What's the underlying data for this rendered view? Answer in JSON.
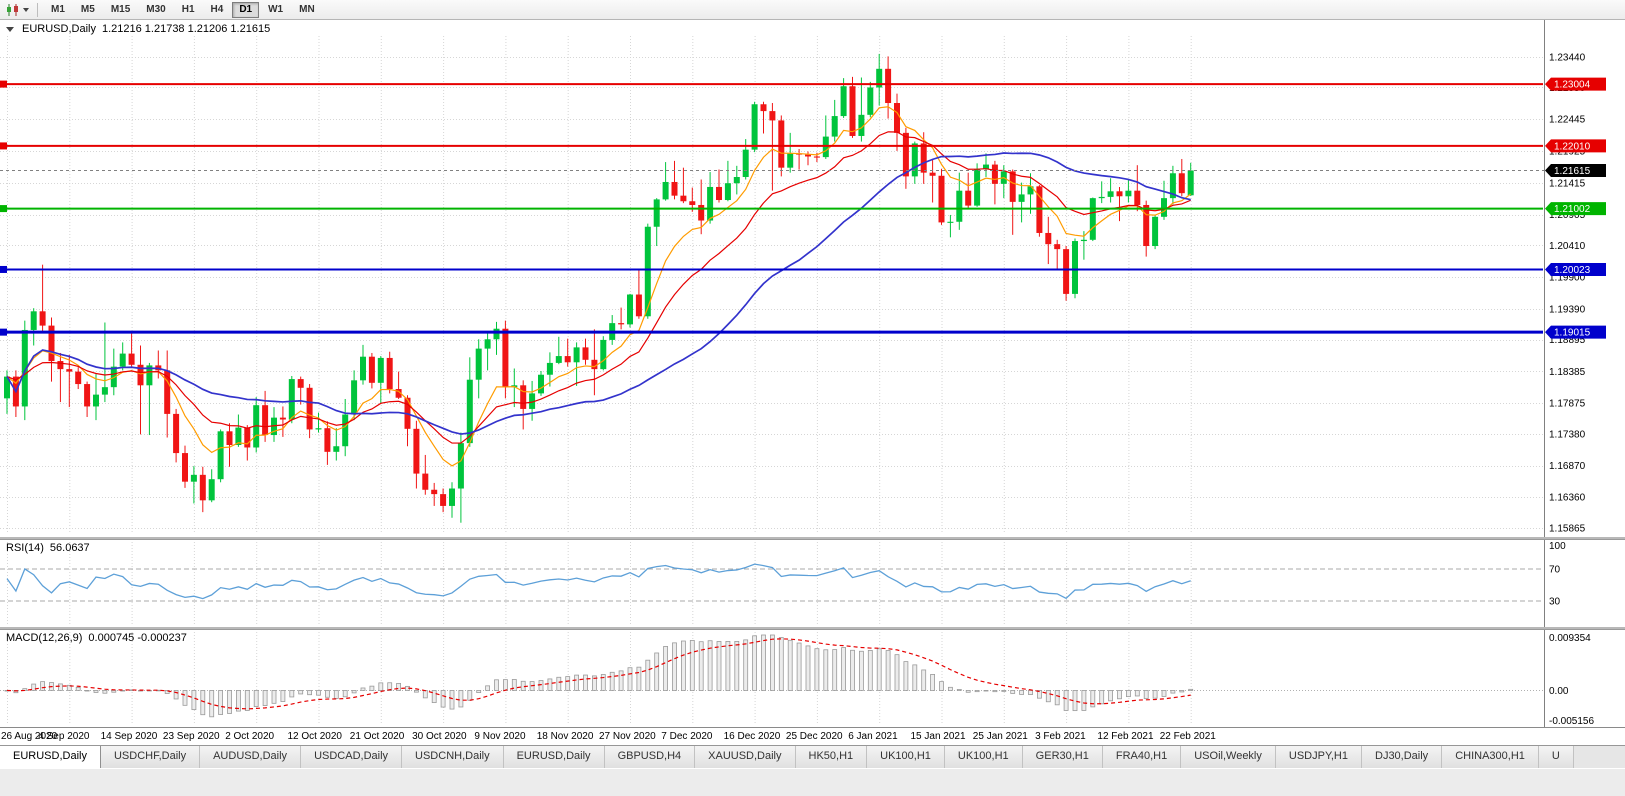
{
  "toolbar": {
    "timeframes": [
      "M1",
      "M5",
      "M15",
      "M30",
      "H1",
      "H4",
      "D1",
      "W1",
      "MN"
    ],
    "active_timeframe": "D1"
  },
  "chart_data": {
    "type": "candlestick",
    "symbol": "EURUSD",
    "timeframe": "Daily",
    "title_symbol": "EURUSD,Daily",
    "title_ohlc": "1.21216 1.21738 1.21206 1.21615",
    "current_price": {
      "value": 1.21615,
      "label": "1.21615",
      "badge_color": "#000000"
    },
    "bull_color": "#00c43c",
    "bear_color": "#f01515",
    "grid_color": "#d6d6d6",
    "y_ticks": [
      "1.23440",
      "1.22950",
      "1.22445",
      "1.21925",
      "1.21415",
      "1.20905",
      "1.20410",
      "1.19900",
      "1.19390",
      "1.18895",
      "1.18385",
      "1.17875",
      "1.17380",
      "1.16870",
      "1.16360",
      "1.15865"
    ],
    "x_ticks": [
      "26 Aug 2020",
      "4 Sep 2020",
      "14 Sep 2020",
      "23 Sep 2020",
      "2 Oct 2020",
      "12 Oct 2020",
      "21 Oct 2020",
      "30 Oct 2020",
      "9 Nov 2020",
      "18 Nov 2020",
      "27 Nov 2020",
      "7 Dec 2020",
      "16 Dec 2020",
      "25 Dec 2020",
      "6 Jan 2021",
      "15 Jan 2021",
      "25 Jan 2021",
      "3 Feb 2021",
      "12 Feb 2021",
      "22 Feb 2021"
    ],
    "hlines": [
      {
        "price": 1.23004,
        "label": "1.23004",
        "color": "#e60000",
        "width": 2
      },
      {
        "price": 1.2201,
        "label": "1.22010",
        "color": "#e60000",
        "width": 2
      },
      {
        "price": 1.21002,
        "label": "1.21002",
        "color": "#00b400",
        "width": 2
      },
      {
        "price": 1.20023,
        "label": "1.20023",
        "color": "#0000cc",
        "width": 2
      },
      {
        "price": 1.19015,
        "label": "1.19015",
        "color": "#0000cc",
        "width": 3
      }
    ],
    "moving_averages": [
      {
        "name": "fast-orange",
        "method": "ema",
        "period": 8,
        "color": "#ff9c00"
      },
      {
        "name": "mid-red",
        "method": "ema",
        "period": 17,
        "color": "#e60000"
      },
      {
        "name": "slow-blue",
        "method": "sma",
        "period": 34,
        "color": "#3333cc"
      }
    ],
    "indicators": {
      "rsi": {
        "label": "RSI(14)",
        "value_label": "56.0637",
        "period": 14,
        "levels": [
          "100",
          "70",
          "30"
        ],
        "color": "#5da0d8"
      },
      "macd": {
        "label": "MACD(12,26,9)",
        "values_label": "0.000745 -0.000237",
        "fast": 12,
        "slow": 26,
        "signal_period": 9,
        "axis": [
          "0.009354",
          "0.00",
          "-0.005156"
        ],
        "y_max": 0.009354,
        "y_min": -0.005156,
        "histogram_fill": "#ececec",
        "histogram_stroke": "#9a9a9a",
        "signal_color": "#e60000"
      }
    },
    "candles": [
      [
        1.1795,
        1.184,
        1.177,
        1.183
      ],
      [
        1.183,
        1.184,
        1.1765,
        1.1782
      ],
      [
        1.1782,
        1.192,
        1.176,
        1.1905
      ],
      [
        1.1905,
        1.194,
        1.188,
        1.1935
      ],
      [
        1.1935,
        1.201,
        1.19,
        1.1912
      ],
      [
        1.1912,
        1.1925,
        1.1822,
        1.1855
      ],
      [
        1.1855,
        1.1868,
        1.1789,
        1.1842
      ],
      [
        1.1842,
        1.1865,
        1.1781,
        1.1838
      ],
      [
        1.1838,
        1.1845,
        1.181,
        1.1818
      ],
      [
        1.1818,
        1.1822,
        1.1765,
        1.1782
      ],
      [
        1.1782,
        1.1834,
        1.176,
        1.1801
      ],
      [
        1.1801,
        1.1917,
        1.1789,
        1.1813
      ],
      [
        1.1813,
        1.1875,
        1.18,
        1.1846
      ],
      [
        1.1846,
        1.1885,
        1.184,
        1.1867
      ],
      [
        1.1867,
        1.19,
        1.1845,
        1.1849
      ],
      [
        1.1849,
        1.188,
        1.1737,
        1.1816
      ],
      [
        1.1816,
        1.1852,
        1.1736,
        1.1848
      ],
      [
        1.1848,
        1.1872,
        1.1827,
        1.184
      ],
      [
        1.184,
        1.1872,
        1.1732,
        1.177
      ],
      [
        1.177,
        1.1778,
        1.1692,
        1.1707
      ],
      [
        1.1707,
        1.1719,
        1.1651,
        1.1661
      ],
      [
        1.1661,
        1.1686,
        1.1626,
        1.1672
      ],
      [
        1.1672,
        1.1685,
        1.1612,
        1.1631
      ],
      [
        1.1631,
        1.1681,
        1.1628,
        1.1665
      ],
      [
        1.1665,
        1.1745,
        1.166,
        1.1742
      ],
      [
        1.1742,
        1.1755,
        1.1685,
        1.172
      ],
      [
        1.172,
        1.1769,
        1.1717,
        1.1748
      ],
      [
        1.1748,
        1.1752,
        1.1695,
        1.1716
      ],
      [
        1.1716,
        1.1797,
        1.1708,
        1.1784
      ],
      [
        1.1784,
        1.1807,
        1.1725,
        1.1736
      ],
      [
        1.1736,
        1.1781,
        1.1725,
        1.1764
      ],
      [
        1.1764,
        1.1782,
        1.1733,
        1.1761
      ],
      [
        1.1761,
        1.1831,
        1.1755,
        1.1826
      ],
      [
        1.1826,
        1.183,
        1.1785,
        1.1812
      ],
      [
        1.1812,
        1.1818,
        1.1731,
        1.1745
      ],
      [
        1.1745,
        1.1772,
        1.174,
        1.1747
      ],
      [
        1.1747,
        1.1758,
        1.1688,
        1.1709
      ],
      [
        1.1709,
        1.1747,
        1.1695,
        1.1718
      ],
      [
        1.1718,
        1.1794,
        1.1702,
        1.1769
      ],
      [
        1.1769,
        1.184,
        1.176,
        1.1824
      ],
      [
        1.1824,
        1.1881,
        1.1817,
        1.1862
      ],
      [
        1.1862,
        1.1868,
        1.1811,
        1.182
      ],
      [
        1.182,
        1.1863,
        1.1787,
        1.186
      ],
      [
        1.186,
        1.187,
        1.1803,
        1.181
      ],
      [
        1.181,
        1.1838,
        1.1794,
        1.1796
      ],
      [
        1.1796,
        1.18,
        1.1718,
        1.1746
      ],
      [
        1.1746,
        1.1759,
        1.165,
        1.1674
      ],
      [
        1.1674,
        1.1704,
        1.164,
        1.1648
      ],
      [
        1.1648,
        1.1659,
        1.1622,
        1.1641
      ],
      [
        1.1641,
        1.165,
        1.1612,
        1.1622
      ],
      [
        1.1622,
        1.166,
        1.1603,
        1.165
      ],
      [
        1.165,
        1.174,
        1.1595,
        1.1723
      ],
      [
        1.1723,
        1.1861,
        1.1717,
        1.1825
      ],
      [
        1.1825,
        1.189,
        1.1795,
        1.1875
      ],
      [
        1.1875,
        1.1901,
        1.184,
        1.189
      ],
      [
        1.189,
        1.1918,
        1.1865,
        1.1907
      ],
      [
        1.1907,
        1.192,
        1.1795,
        1.1813
      ],
      [
        1.1813,
        1.1843,
        1.1781,
        1.1816
      ],
      [
        1.1816,
        1.1824,
        1.1745,
        1.1778
      ],
      [
        1.1778,
        1.1823,
        1.1759,
        1.1803
      ],
      [
        1.1803,
        1.1839,
        1.1799,
        1.1833
      ],
      [
        1.1833,
        1.1869,
        1.1814,
        1.1852
      ],
      [
        1.1852,
        1.1894,
        1.185,
        1.1863
      ],
      [
        1.1863,
        1.1891,
        1.1846,
        1.1853
      ],
      [
        1.1853,
        1.1885,
        1.1815,
        1.1877
      ],
      [
        1.1877,
        1.1891,
        1.1849,
        1.1857
      ],
      [
        1.1857,
        1.1906,
        1.18,
        1.1842
      ],
      [
        1.1842,
        1.1895,
        1.184,
        1.1889
      ],
      [
        1.1889,
        1.1929,
        1.1881,
        1.1916
      ],
      [
        1.1916,
        1.1941,
        1.1906,
        1.1914
      ],
      [
        1.1914,
        1.1963,
        1.1909,
        1.1962
      ],
      [
        1.1962,
        1.2003,
        1.1923,
        1.1927
      ],
      [
        1.1927,
        1.2076,
        1.1923,
        1.2071
      ],
      [
        1.2071,
        1.2117,
        1.204,
        1.2115
      ],
      [
        1.2115,
        1.2175,
        1.2113,
        1.2143
      ],
      [
        1.2143,
        1.2177,
        1.2115,
        1.2121
      ],
      [
        1.2121,
        1.2166,
        1.2109,
        1.2112
      ],
      [
        1.2112,
        1.2134,
        1.2095,
        1.2106
      ],
      [
        1.2106,
        1.2147,
        1.2059,
        1.2081
      ],
      [
        1.2081,
        1.2159,
        1.2076,
        1.2135
      ],
      [
        1.2135,
        1.2163,
        1.211,
        1.2114
      ],
      [
        1.2114,
        1.2177,
        1.2112,
        1.2141
      ],
      [
        1.2141,
        1.2169,
        1.2123,
        1.2151
      ],
      [
        1.2151,
        1.2212,
        1.2147,
        1.2195
      ],
      [
        1.2195,
        1.2272,
        1.2191,
        1.2268
      ],
      [
        1.2268,
        1.2272,
        1.2221,
        1.2257
      ],
      [
        1.2257,
        1.227,
        1.2129,
        1.2242
      ],
      [
        1.2242,
        1.225,
        1.2152,
        1.2166
      ],
      [
        1.2166,
        1.2222,
        1.2158,
        1.2189
      ],
      [
        1.2189,
        1.2196,
        1.2163,
        1.2187
      ],
      [
        1.2187,
        1.2192,
        1.217,
        1.2184
      ],
      [
        1.2184,
        1.219,
        1.2175,
        1.2183
      ],
      [
        1.2183,
        1.225,
        1.218,
        1.2216
      ],
      [
        1.2216,
        1.2275,
        1.2208,
        1.2249
      ],
      [
        1.2249,
        1.231,
        1.2246,
        1.2297
      ],
      [
        1.2297,
        1.2312,
        1.2214,
        1.2217
      ],
      [
        1.2217,
        1.2311,
        1.2208,
        1.2251
      ],
      [
        1.2251,
        1.2304,
        1.2247,
        1.2295
      ],
      [
        1.2295,
        1.2349,
        1.2266,
        1.2325
      ],
      [
        1.2325,
        1.2345,
        1.2245,
        1.227
      ],
      [
        1.227,
        1.2285,
        1.2193,
        1.2222
      ],
      [
        1.2222,
        1.223,
        1.2132,
        1.2152
      ],
      [
        1.2152,
        1.2208,
        1.214,
        1.2205
      ],
      [
        1.2205,
        1.2223,
        1.214,
        1.2158
      ],
      [
        1.2158,
        1.218,
        1.211,
        1.2153
      ],
      [
        1.2153,
        1.2164,
        1.2074,
        1.2078
      ],
      [
        1.2078,
        1.209,
        1.2054,
        1.2079
      ],
      [
        1.2079,
        1.2158,
        1.2066,
        1.2129
      ],
      [
        1.2129,
        1.2158,
        1.2101,
        1.2105
      ],
      [
        1.2105,
        1.2173,
        1.2103,
        1.2164
      ],
      [
        1.2164,
        1.2189,
        1.2151,
        1.2171
      ],
      [
        1.2171,
        1.2177,
        1.2107,
        1.214
      ],
      [
        1.214,
        1.217,
        1.2117,
        1.216
      ],
      [
        1.216,
        1.2163,
        1.2058,
        1.2111
      ],
      [
        1.2111,
        1.2142,
        1.2078,
        1.2123
      ],
      [
        1.2123,
        1.2157,
        1.2092,
        1.2136
      ],
      [
        1.2136,
        1.2138,
        1.2055,
        1.2061
      ],
      [
        1.2061,
        1.2087,
        1.2011,
        1.2043
      ],
      [
        1.2043,
        1.205,
        1.2002,
        1.2035
      ],
      [
        1.2035,
        1.204,
        1.1952,
        1.1963
      ],
      [
        1.1963,
        1.2052,
        1.1956,
        1.2048
      ],
      [
        1.2048,
        1.2064,
        1.2018,
        1.205
      ],
      [
        1.205,
        1.2118,
        1.2048,
        1.2117
      ],
      [
        1.2117,
        1.2144,
        1.2109,
        1.2119
      ],
      [
        1.2119,
        1.2149,
        1.211,
        1.2128
      ],
      [
        1.2128,
        1.2135,
        1.208,
        1.212
      ],
      [
        1.212,
        1.2146,
        1.211,
        1.2129
      ],
      [
        1.2129,
        1.217,
        1.2096,
        1.2106
      ],
      [
        1.2106,
        1.2113,
        1.2023,
        1.204
      ],
      [
        1.204,
        1.209,
        1.2035,
        1.2087
      ],
      [
        1.2087,
        1.2145,
        1.2082,
        1.2117
      ],
      [
        1.2117,
        1.2169,
        1.2107,
        1.2157
      ],
      [
        1.2157,
        1.218,
        1.212,
        1.2125
      ],
      [
        1.21216,
        1.21738,
        1.21206,
        1.21615
      ]
    ]
  },
  "tabs": [
    {
      "label": "EURUSD,Daily",
      "active": true
    },
    {
      "label": "USDCHF,Daily"
    },
    {
      "label": "AUDUSD,Daily"
    },
    {
      "label": "USDCAD,Daily"
    },
    {
      "label": "USDCNH,Daily"
    },
    {
      "label": "EURUSD,Daily"
    },
    {
      "label": "GBPUSD,H4"
    },
    {
      "label": "XAUUSD,Daily"
    },
    {
      "label": "HK50,H1"
    },
    {
      "label": "UK100,H1"
    },
    {
      "label": "UK100,H1"
    },
    {
      "label": "GER30,H1"
    },
    {
      "label": "FRA40,H1"
    },
    {
      "label": "USOil,Weekly"
    },
    {
      "label": "USDJPY,H1"
    },
    {
      "label": "DJ30,Daily"
    },
    {
      "label": "CHINA300,H1"
    },
    {
      "label": "U"
    }
  ]
}
